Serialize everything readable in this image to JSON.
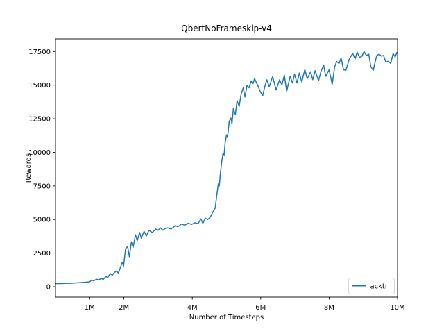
{
  "figure": {
    "background_color": "#ffffff",
    "frame_color": "#000000"
  },
  "chart_data": {
    "type": "line",
    "title": "QbertNoFrameskip-v4",
    "xlabel": "Number of Timesteps",
    "ylabel": "Rewards",
    "grid": false,
    "line_color": "#1f77b4",
    "legend_edge_color": "#cccccc",
    "legend_position": "lower right",
    "legend_entries": [
      {
        "label": "acktr",
        "color": "#1f77b4"
      }
    ],
    "x_unit": "millions of timesteps",
    "xlim_millions": [
      0.0,
      10.0
    ],
    "ylim": [
      -775,
      18446
    ],
    "x_ticks": [
      {
        "value": 1,
        "label": "1M"
      },
      {
        "value": 2,
        "label": "2M"
      },
      {
        "value": 4,
        "label": "4M"
      },
      {
        "value": 6,
        "label": "6M"
      },
      {
        "value": 8,
        "label": "8M"
      },
      {
        "value": 10,
        "label": "10M"
      }
    ],
    "y_ticks": [
      {
        "value": 0,
        "label": "0"
      },
      {
        "value": 2500,
        "label": "2500"
      },
      {
        "value": 5000,
        "label": "5000"
      },
      {
        "value": 7500,
        "label": "7500"
      },
      {
        "value": 10000,
        "label": "10000"
      },
      {
        "value": 12500,
        "label": "12500"
      },
      {
        "value": 15000,
        "label": "15000"
      },
      {
        "value": 17500,
        "label": "17500"
      }
    ],
    "series": [
      {
        "name": "acktr",
        "x_millions": [
          0.02,
          0.12,
          0.22,
          0.32,
          0.42,
          0.52,
          0.62,
          0.72,
          0.82,
          0.92,
          1.0,
          1.06,
          1.12,
          1.2,
          1.27,
          1.33,
          1.4,
          1.47,
          1.53,
          1.6,
          1.66,
          1.72,
          1.79,
          1.84,
          1.9,
          1.95,
          1.99,
          2.05,
          2.11,
          2.16,
          2.22,
          2.27,
          2.34,
          2.39,
          2.46,
          2.51,
          2.59,
          2.66,
          2.73,
          2.83,
          2.93,
          3.0,
          3.07,
          3.14,
          3.21,
          3.28,
          3.38,
          3.5,
          3.58,
          3.68,
          3.78,
          3.88,
          3.98,
          4.08,
          4.17,
          4.25,
          4.31,
          4.38,
          4.45,
          4.52,
          4.58,
          4.63,
          4.67,
          4.72,
          4.76,
          4.79,
          4.82,
          4.86,
          4.9,
          4.93,
          4.96,
          5.0,
          5.03,
          5.08,
          5.13,
          5.16,
          5.2,
          5.26,
          5.31,
          5.37,
          5.43,
          5.49,
          5.54,
          5.6,
          5.66,
          5.72,
          5.77,
          5.82,
          5.87,
          5.93,
          5.99,
          6.06,
          6.12,
          6.18,
          6.25,
          6.35,
          6.45,
          6.55,
          6.62,
          6.69,
          6.76,
          6.86,
          6.93,
          6.99,
          7.06,
          7.13,
          7.2,
          7.29,
          7.36,
          7.46,
          7.52,
          7.59,
          7.69,
          7.76,
          7.84,
          7.9,
          8.0,
          8.09,
          8.16,
          8.22,
          8.29,
          8.35,
          8.42,
          8.49,
          8.59,
          8.69,
          8.76,
          8.82,
          8.89,
          8.96,
          9.02,
          9.09,
          9.16,
          9.22,
          9.29,
          9.39,
          9.46,
          9.53,
          9.59,
          9.66,
          9.73,
          9.8,
          9.87,
          9.93,
          9.98
        ],
        "rewards": [
          230,
          235,
          240,
          250,
          255,
          265,
          285,
          305,
          320,
          340,
          365,
          500,
          430,
          560,
          490,
          610,
          545,
          760,
          690,
          980,
          860,
          1050,
          1180,
          1010,
          1450,
          1790,
          1540,
          2820,
          3000,
          2230,
          3340,
          2930,
          3860,
          3430,
          4030,
          3610,
          4120,
          3780,
          4200,
          4030,
          4290,
          4200,
          4380,
          4210,
          4330,
          4380,
          4290,
          4540,
          4460,
          4660,
          4590,
          4720,
          4640,
          4760,
          4700,
          5050,
          4720,
          5100,
          5000,
          5150,
          5450,
          5700,
          5850,
          6900,
          7650,
          7500,
          8400,
          9300,
          9950,
          9800,
          10700,
          11300,
          11100,
          12300,
          12560,
          12120,
          13240,
          12820,
          13850,
          13420,
          14350,
          14800,
          14120,
          14990,
          14800,
          15320,
          15080,
          15500,
          15210,
          14900,
          14500,
          14230,
          14900,
          15400,
          14890,
          15650,
          14640,
          15400,
          15020,
          15750,
          14540,
          15650,
          15160,
          15820,
          15160,
          15910,
          15240,
          16170,
          15490,
          16000,
          15410,
          16080,
          15330,
          16000,
          16500,
          15660,
          16150,
          15060,
          16350,
          16770,
          16610,
          17030,
          16160,
          16110,
          16950,
          17360,
          16950,
          17460,
          17060,
          17160,
          17500,
          17210,
          17300,
          16360,
          16110,
          17200,
          17300,
          17160,
          17210,
          16710,
          16790,
          16610,
          17350,
          17100,
          17430
        ]
      }
    ]
  }
}
